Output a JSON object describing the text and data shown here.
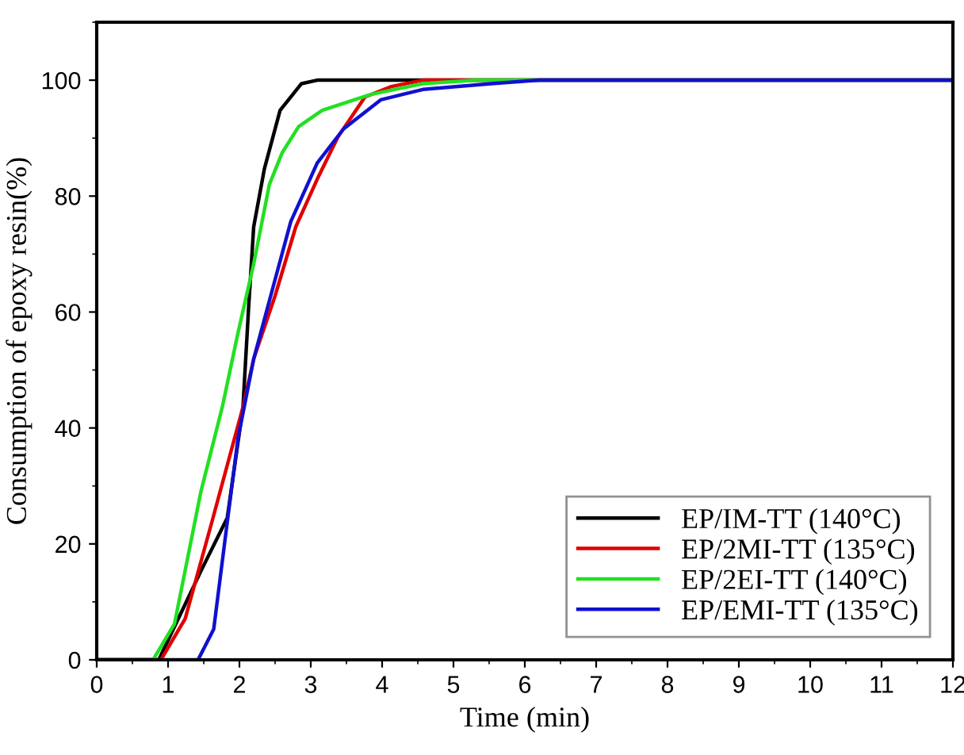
{
  "chart_data": {
    "type": "line",
    "xlabel": "Time (min)",
    "ylabel": "Consumption of epoxy resin(%)",
    "xlim": [
      0,
      12
    ],
    "xticks": [
      0,
      1,
      2,
      3,
      4,
      5,
      6,
      7,
      8,
      9,
      10,
      11,
      12
    ],
    "ylim": [
      0,
      110
    ],
    "yticks": [
      0,
      20,
      40,
      60,
      80,
      100
    ],
    "grid": false,
    "legend": "bottom right",
    "marker": "none",
    "line_style": "solid",
    "series": [
      {
        "name": "EP/IM-TT (140°C)",
        "color": "#000000",
        "x": [
          0,
          0.87,
          1.46,
          1.83,
          2.05,
          2.13,
          2.2,
          2.35,
          2.57,
          2.87,
          3.09,
          12
        ],
        "values": [
          0,
          0,
          15.3,
          24.5,
          43.6,
          61,
          74.7,
          84.7,
          94.8,
          99.4,
          100,
          100
        ]
      },
      {
        "name": "EP/2MI-TT (135°C)",
        "color": "#e00000",
        "x": [
          0,
          0.9,
          1.24,
          1.61,
          2.05,
          2.2,
          2.5,
          2.79,
          3.09,
          3.38,
          3.76,
          4.13,
          4.57,
          12
        ],
        "values": [
          0,
          0,
          7.1,
          23.6,
          43.6,
          51.9,
          62.8,
          74.7,
          82.9,
          90.2,
          97.1,
          98.9,
          100,
          100
        ]
      },
      {
        "name": "EP/2EI-TT (140°C)",
        "color": "#22e022",
        "x": [
          0,
          0.79,
          1.09,
          1.46,
          1.76,
          1.98,
          2.2,
          2.42,
          2.6,
          2.83,
          3.16,
          3.83,
          4.57,
          5.31,
          12
        ],
        "values": [
          0,
          0,
          6.2,
          29,
          43.6,
          56.4,
          68.3,
          82,
          87.5,
          92,
          94.8,
          97.5,
          99.4,
          100,
          100
        ]
      },
      {
        "name": "EP/EMI-TT (135°C)",
        "color": "#1010d0",
        "x": [
          0,
          1.42,
          1.64,
          1.79,
          1.98,
          2.2,
          2.5,
          2.72,
          3.09,
          3.46,
          3.98,
          4.57,
          5.53,
          6.2,
          12
        ],
        "values": [
          0,
          0,
          5.3,
          19.9,
          38.2,
          51.9,
          65.6,
          75.6,
          85.7,
          91.6,
          96.6,
          98.4,
          99.4,
          100,
          100
        ]
      }
    ]
  }
}
